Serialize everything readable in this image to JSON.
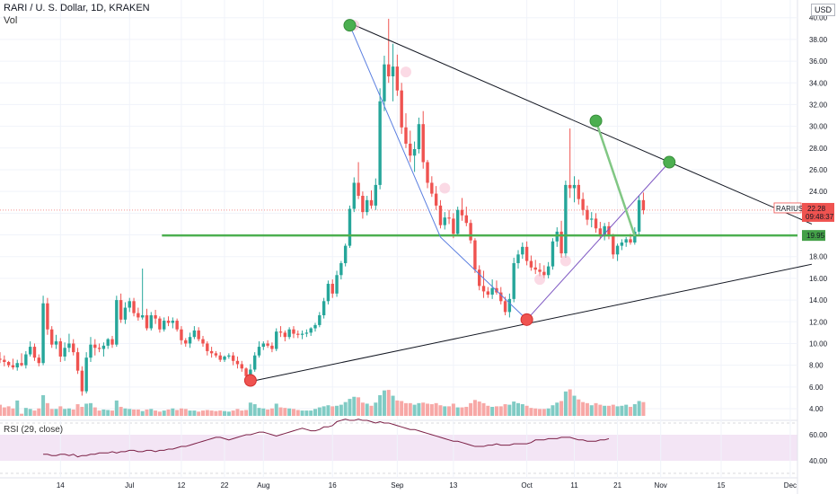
{
  "header": {
    "title": "RARI / U. S. Dollar, 1D, KRAKEN",
    "volume_label": "Vol",
    "currency": "USD"
  },
  "rsi_label": "RSI (29, close)",
  "price_tag": {
    "symbol": "RARIUSD",
    "value": "22.28",
    "countdown": "09:48:37"
  },
  "level_tag": "19.95",
  "colors": {
    "up": "#26a69a",
    "down": "#ef5350",
    "support": "#4caf50",
    "rsi_line": "#7b1f45",
    "rsi_band": "#f3e5f5"
  },
  "chart_data": {
    "type": "candlestick",
    "y_ticks": [
      "4.00",
      "6.00",
      "8.00",
      "10.00",
      "12.00",
      "14.00",
      "16.00",
      "18.00",
      "20.00",
      "22.00",
      "24.00",
      "26.00",
      "28.00",
      "30.00",
      "32.00",
      "34.00",
      "36.00",
      "38.00",
      "40.00"
    ],
    "x_ticks": [
      "14",
      "Jul",
      "12",
      "22",
      "Aug",
      "16",
      "Sep",
      "13",
      "Oct",
      "11",
      "21",
      "Nov",
      "15",
      "Dec"
    ],
    "rsi_ticks": [
      "60.00",
      "40.00"
    ],
    "ylim": [
      3,
      41
    ],
    "horizontal_level": 19.95,
    "last_price": 22.28,
    "x_tick_days": [
      14,
      30,
      42,
      52,
      61,
      77,
      92,
      105,
      122,
      133,
      143,
      153,
      167,
      183
    ],
    "trendlines": [
      {
        "from": [
          58,
          6.5
        ],
        "to": [
          188,
          17.3
        ]
      },
      {
        "from": [
          81,
          39.5
        ],
        "to": [
          188,
          21.0
        ]
      }
    ],
    "swing_points": [
      {
        "day": 58,
        "price": 6.6,
        "type": "low"
      },
      {
        "day": 81,
        "price": 39.3,
        "type": "high"
      },
      {
        "day": 122,
        "price": 12.2,
        "type": "low"
      },
      {
        "day": 138,
        "price": 30.5,
        "type": "high"
      },
      {
        "day": 155,
        "price": 26.7,
        "type": "high"
      }
    ],
    "pattern_lines": [
      {
        "color": "#5b7fe0",
        "points": [
          [
            81,
            39.3
          ],
          [
            102,
            19.8
          ],
          [
            122,
            12.2
          ]
        ]
      },
      {
        "color": "#7e57c2",
        "points": [
          [
            122,
            12.2
          ],
          [
            155,
            26.7
          ]
        ]
      },
      {
        "color": "#81c784",
        "points": [
          [
            138,
            30.5
          ],
          [
            147,
            19.9
          ]
        ]
      }
    ],
    "markers": [
      [
        82,
        39.3
      ],
      [
        94,
        35.0
      ],
      [
        103,
        24.3
      ],
      [
        131,
        17.6
      ],
      [
        125,
        15.9
      ]
    ],
    "candles": [
      [
        8.6,
        9.2,
        8.2,
        8.5,
        2.1
      ],
      [
        8.5,
        8.9,
        7.9,
        8.3,
        1.6
      ],
      [
        8.3,
        8.4,
        7.8,
        8.0,
        1.8
      ],
      [
        8.0,
        8.6,
        7.6,
        7.8,
        1.4
      ],
      [
        7.8,
        8.5,
        7.5,
        8.2,
        2.9
      ],
      [
        8.2,
        9.1,
        7.9,
        8.0,
        0.4
      ],
      [
        8.0,
        9.3,
        7.7,
        9.0,
        1.5
      ],
      [
        9.0,
        10.2,
        8.8,
        9.7,
        1.3
      ],
      [
        9.7,
        10.0,
        8.4,
        8.7,
        1.0
      ],
      [
        8.7,
        9.0,
        7.9,
        8.2,
        1.4
      ],
      [
        8.2,
        14.4,
        8.0,
        13.7,
        3.9
      ],
      [
        13.7,
        14.2,
        10.8,
        11.3,
        2.4
      ],
      [
        11.3,
        11.6,
        9.6,
        9.9,
        1.3
      ],
      [
        9.9,
        10.8,
        9.5,
        10.2,
        1.3
      ],
      [
        10.2,
        10.5,
        8.3,
        8.8,
        1.8
      ],
      [
        8.8,
        10.1,
        8.4,
        9.6,
        1.3
      ],
      [
        9.6,
        10.9,
        9.2,
        10.0,
        1.4
      ],
      [
        10.0,
        10.4,
        8.9,
        9.2,
        1.2
      ],
      [
        9.2,
        9.6,
        7.2,
        7.5,
        2.2
      ],
      [
        7.5,
        7.9,
        5.2,
        5.6,
        1.7
      ],
      [
        5.6,
        9.2,
        5.4,
        8.7,
        2.3
      ],
      [
        8.7,
        10.6,
        8.3,
        9.9,
        2.4
      ],
      [
        9.9,
        10.4,
        8.9,
        9.6,
        1.6
      ],
      [
        9.6,
        10.0,
        9.2,
        9.5,
        1.0
      ],
      [
        9.5,
        10.1,
        8.8,
        9.8,
        1.2
      ],
      [
        9.8,
        10.5,
        9.5,
        10.4,
        1.1
      ],
      [
        10.4,
        10.7,
        9.6,
        9.9,
        1.0
      ],
      [
        9.9,
        14.4,
        9.7,
        14.0,
        2.9
      ],
      [
        14.0,
        14.6,
        11.9,
        12.2,
        1.7
      ],
      [
        12.2,
        13.8,
        11.8,
        13.3,
        1.4
      ],
      [
        13.3,
        14.2,
        12.9,
        13.9,
        1.3
      ],
      [
        13.9,
        14.2,
        12.5,
        12.8,
        1.2
      ],
      [
        12.8,
        13.3,
        12.1,
        12.4,
        1.2
      ],
      [
        12.4,
        16.9,
        12.2,
        12.6,
        0.9
      ],
      [
        12.6,
        13.2,
        11.2,
        11.4,
        1.2
      ],
      [
        11.4,
        12.9,
        11.2,
        12.6,
        1.3
      ],
      [
        12.6,
        13.1,
        11.8,
        12.3,
        1.0
      ],
      [
        12.3,
        12.5,
        11.0,
        11.3,
        0.8
      ],
      [
        11.3,
        12.4,
        11.1,
        12.1,
        1.0
      ],
      [
        12.1,
        12.5,
        11.6,
        11.9,
        1.2
      ],
      [
        11.9,
        12.4,
        11.4,
        12.1,
        1.4
      ],
      [
        12.1,
        12.3,
        11.1,
        11.3,
        1.1
      ],
      [
        11.3,
        11.6,
        9.9,
        10.3,
        1.4
      ],
      [
        10.3,
        10.5,
        9.7,
        10.0,
        1.3
      ],
      [
        10.0,
        11.0,
        9.6,
        10.6,
        1.0
      ],
      [
        10.6,
        11.6,
        10.4,
        11.2,
        1.0
      ],
      [
        11.2,
        11.5,
        10.2,
        10.4,
        0.8
      ],
      [
        10.4,
        10.7,
        9.7,
        10.0,
        1.0
      ],
      [
        10.0,
        10.2,
        8.9,
        9.3,
        1.1
      ],
      [
        9.3,
        9.7,
        8.7,
        9.1,
        1.0
      ],
      [
        9.1,
        9.3,
        8.7,
        8.9,
        0.9
      ],
      [
        8.9,
        9.2,
        8.3,
        8.5,
        1.0
      ],
      [
        8.5,
        8.9,
        8.3,
        8.8,
        0.9
      ],
      [
        8.8,
        9.1,
        8.6,
        8.9,
        0.8
      ],
      [
        8.9,
        9.2,
        8.0,
        8.4,
        1.0
      ],
      [
        8.4,
        8.8,
        7.7,
        8.1,
        1.3
      ],
      [
        8.1,
        8.4,
        7.4,
        7.7,
        1.0
      ],
      [
        7.7,
        7.8,
        6.2,
        7.0,
        1.1
      ],
      [
        7.0,
        8.1,
        6.6,
        7.6,
        2.5
      ],
      [
        7.6,
        9.2,
        7.4,
        8.9,
        2.2
      ],
      [
        8.9,
        10.2,
        8.7,
        9.7,
        1.5
      ],
      [
        9.7,
        10.2,
        9.4,
        10.0,
        1.4
      ],
      [
        10.0,
        10.3,
        9.6,
        9.8,
        1.2
      ],
      [
        9.8,
        10.1,
        9.2,
        9.5,
        1.4
      ],
      [
        9.5,
        11.4,
        9.3,
        11.1,
        2.3
      ],
      [
        11.1,
        11.6,
        10.6,
        11.0,
        1.6
      ],
      [
        11.0,
        11.2,
        10.2,
        10.6,
        1.5
      ],
      [
        10.6,
        11.5,
        10.4,
        11.3,
        1.4
      ],
      [
        11.3,
        11.6,
        10.5,
        10.9,
        1.3
      ],
      [
        10.9,
        11.2,
        10.5,
        10.8,
        1.1
      ],
      [
        10.8,
        11.2,
        10.4,
        10.9,
        1.0
      ],
      [
        10.9,
        11.3,
        10.6,
        11.0,
        1.0
      ],
      [
        11.0,
        11.5,
        10.7,
        11.4,
        1.0
      ],
      [
        11.4,
        11.9,
        11.1,
        11.7,
        1.3
      ],
      [
        11.7,
        12.9,
        11.5,
        12.6,
        1.6
      ],
      [
        12.6,
        14.2,
        12.3,
        13.9,
        1.8
      ],
      [
        13.9,
        15.8,
        13.6,
        15.5,
        2.0
      ],
      [
        15.5,
        15.9,
        14.2,
        14.6,
        1.8
      ],
      [
        14.6,
        16.7,
        14.3,
        16.3,
        1.9
      ],
      [
        16.3,
        17.6,
        15.9,
        17.4,
        2.1
      ],
      [
        17.4,
        19.2,
        17.1,
        19.0,
        2.6
      ],
      [
        19.0,
        22.7,
        18.8,
        22.4,
        3.2
      ],
      [
        22.4,
        25.3,
        22.1,
        24.8,
        3.6
      ],
      [
        24.8,
        26.7,
        23.3,
        23.6,
        3.5
      ],
      [
        23.6,
        24.0,
        21.5,
        22.1,
        2.5
      ],
      [
        22.1,
        23.6,
        21.8,
        23.2,
        2.3
      ],
      [
        23.2,
        24.1,
        22.4,
        22.7,
        1.9
      ],
      [
        22.7,
        25.2,
        22.3,
        24.6,
        2.5
      ],
      [
        24.6,
        33.5,
        24.2,
        32.3,
        3.9
      ],
      [
        32.3,
        36.5,
        31.4,
        35.7,
        4.8
      ],
      [
        35.7,
        39.9,
        34.0,
        34.6,
        4.9
      ],
      [
        34.6,
        37.6,
        32.3,
        35.5,
        3.8
      ],
      [
        35.5,
        36.6,
        32.8,
        33.3,
        2.9
      ],
      [
        33.3,
        34.0,
        29.3,
        29.9,
        2.8
      ],
      [
        29.9,
        31.2,
        28.0,
        28.4,
        2.4
      ],
      [
        28.4,
        29.6,
        26.7,
        27.3,
        2.4
      ],
      [
        27.3,
        28.6,
        25.8,
        27.9,
        2.1
      ],
      [
        27.9,
        30.8,
        27.5,
        30.2,
        2.4
      ],
      [
        30.2,
        31.4,
        26.1,
        26.7,
        2.5
      ],
      [
        26.7,
        26.9,
        24.3,
        24.8,
        2.3
      ],
      [
        24.8,
        25.4,
        23.5,
        23.8,
        2.2
      ],
      [
        23.8,
        24.5,
        22.3,
        22.7,
        2.4
      ],
      [
        22.7,
        23.2,
        20.6,
        20.9,
        2.0
      ],
      [
        20.9,
        22.1,
        20.5,
        21.6,
        1.8
      ],
      [
        21.6,
        22.3,
        21.0,
        21.5,
        1.8
      ],
      [
        21.5,
        22.0,
        19.7,
        20.1,
        2.3
      ],
      [
        20.1,
        22.6,
        19.9,
        22.3,
        1.6
      ],
      [
        22.3,
        23.4,
        21.3,
        21.8,
        1.6
      ],
      [
        21.8,
        22.6,
        20.8,
        21.1,
        1.7
      ],
      [
        21.1,
        21.4,
        19.2,
        19.5,
        2.4
      ],
      [
        19.5,
        19.7,
        16.5,
        16.8,
        3.0
      ],
      [
        16.8,
        17.2,
        14.9,
        15.3,
        2.7
      ],
      [
        15.3,
        16.7,
        14.2,
        14.8,
        2.4
      ],
      [
        14.8,
        15.2,
        14.2,
        14.5,
        1.9
      ],
      [
        14.5,
        15.9,
        14.1,
        15.1,
        1.7
      ],
      [
        15.1,
        15.8,
        14.5,
        14.7,
        1.8
      ],
      [
        14.7,
        15.2,
        13.6,
        13.9,
        1.8
      ],
      [
        13.9,
        14.3,
        12.6,
        12.9,
        2.2
      ],
      [
        12.9,
        14.6,
        12.4,
        14.1,
        2.1
      ],
      [
        14.1,
        17.9,
        13.8,
        17.4,
        2.7
      ],
      [
        17.4,
        18.6,
        16.9,
        18.2,
        2.4
      ],
      [
        18.2,
        19.3,
        17.8,
        18.9,
        2.2
      ],
      [
        18.9,
        19.4,
        17.2,
        17.6,
        1.9
      ],
      [
        17.6,
        18.1,
        16.7,
        17.0,
        1.5
      ],
      [
        17.0,
        17.7,
        16.4,
        16.8,
        1.4
      ],
      [
        16.8,
        17.4,
        16.2,
        16.6,
        1.3
      ],
      [
        16.6,
        17.2,
        16.0,
        16.3,
        1.3
      ],
      [
        16.3,
        17.5,
        16.0,
        17.1,
        1.4
      ],
      [
        17.1,
        19.7,
        16.8,
        19.4,
        2.0
      ],
      [
        19.4,
        20.7,
        18.9,
        20.3,
        2.5
      ],
      [
        20.3,
        21.3,
        17.9,
        18.3,
        2.8
      ],
      [
        18.3,
        25.0,
        17.9,
        24.6,
        4.6
      ],
      [
        24.6,
        29.8,
        23.4,
        24.3,
        5.0
      ],
      [
        24.3,
        25.4,
        23.0,
        24.6,
        3.8
      ],
      [
        24.6,
        25.1,
        22.8,
        23.3,
        3.1
      ],
      [
        23.3,
        23.9,
        21.8,
        22.3,
        2.6
      ],
      [
        22.3,
        22.7,
        20.9,
        21.4,
        2.4
      ],
      [
        21.4,
        22.1,
        20.7,
        21.5,
        2.0
      ],
      [
        21.5,
        22.0,
        20.2,
        20.6,
        2.4
      ],
      [
        20.6,
        21.2,
        19.6,
        19.9,
        2.1
      ],
      [
        19.9,
        21.1,
        19.5,
        20.8,
        1.9
      ],
      [
        20.8,
        21.2,
        19.6,
        19.9,
        1.9
      ],
      [
        19.9,
        20.1,
        17.8,
        18.2,
        2.1
      ],
      [
        18.2,
        19.2,
        17.6,
        19.0,
        1.8
      ],
      [
        19.0,
        19.6,
        18.6,
        19.3,
        1.9
      ],
      [
        19.3,
        19.8,
        18.9,
        19.6,
        2.1
      ],
      [
        19.6,
        20.1,
        19.1,
        19.3,
        1.7
      ],
      [
        19.3,
        20.7,
        19.1,
        20.3,
        2.2
      ],
      [
        20.3,
        23.6,
        20.0,
        23.2,
        2.8
      ],
      [
        23.2,
        23.9,
        21.9,
        22.28,
        2.6
      ]
    ],
    "rsi": [
      45,
      45,
      44,
      44,
      45,
      45,
      44,
      45,
      43,
      44,
      44,
      45,
      45,
      46,
      46,
      46,
      47,
      46,
      47,
      47,
      48,
      48,
      47,
      47,
      48,
      48,
      47,
      48,
      48,
      49,
      49,
      50,
      51,
      51,
      52,
      53,
      54,
      55,
      56,
      57,
      58,
      58,
      57,
      56,
      57,
      58,
      59,
      60,
      60,
      61,
      62,
      62,
      61,
      60,
      59,
      60,
      61,
      62,
      63,
      64,
      65,
      64,
      63,
      63,
      64,
      66,
      66,
      67,
      70,
      71,
      72,
      71,
      71,
      72,
      71,
      71,
      70,
      69,
      70,
      69,
      69,
      68,
      67,
      66,
      65,
      64,
      64,
      63,
      62,
      61,
      60,
      59,
      58,
      57,
      56,
      55,
      55,
      54,
      53,
      52,
      51,
      51,
      51,
      52,
      52,
      53,
      52,
      52,
      52,
      53,
      53,
      53,
      53,
      54,
      56,
      56,
      56,
      57,
      57,
      57,
      58,
      58,
      58,
      57,
      56,
      56,
      55,
      55,
      55,
      56,
      56,
      57
    ]
  }
}
